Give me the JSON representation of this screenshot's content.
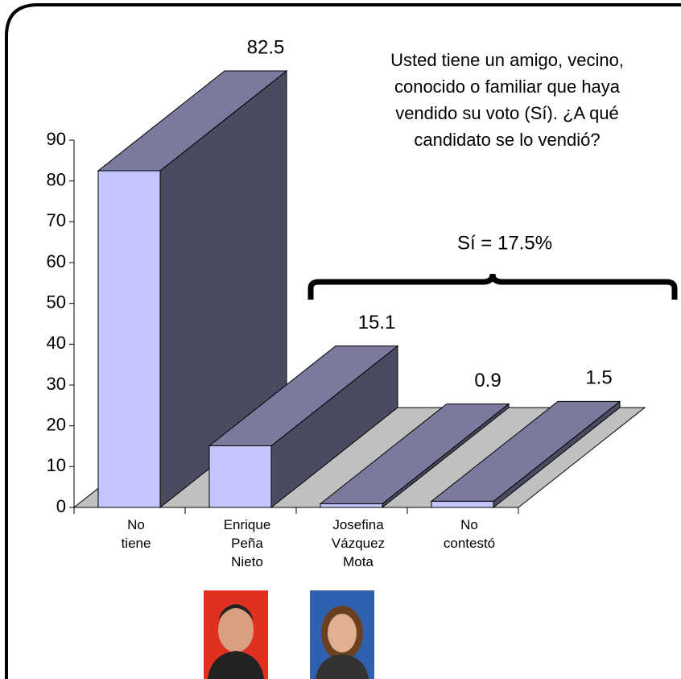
{
  "chart_data": {
    "type": "bar3d",
    "annotation": "Usted tiene un amigo, vecino,\nconocido o familiar que haya\nvendido su voto (Sí). ¿A qué\ncandidato se lo vendió?",
    "bracket_label": "Sí = 17.5%",
    "categories": [
      "No\ntiene",
      "Enrique\nPeña\nNieto",
      "Josefina\nVázquez\nMota",
      "No\ncontestó"
    ],
    "values": [
      82.5,
      15.1,
      0.9,
      1.5
    ],
    "color": "#c4c4ff",
    "ylim": [
      0,
      90
    ],
    "yticks": [
      0,
      10,
      20,
      30,
      40,
      50,
      60,
      70,
      80,
      90
    ]
  }
}
